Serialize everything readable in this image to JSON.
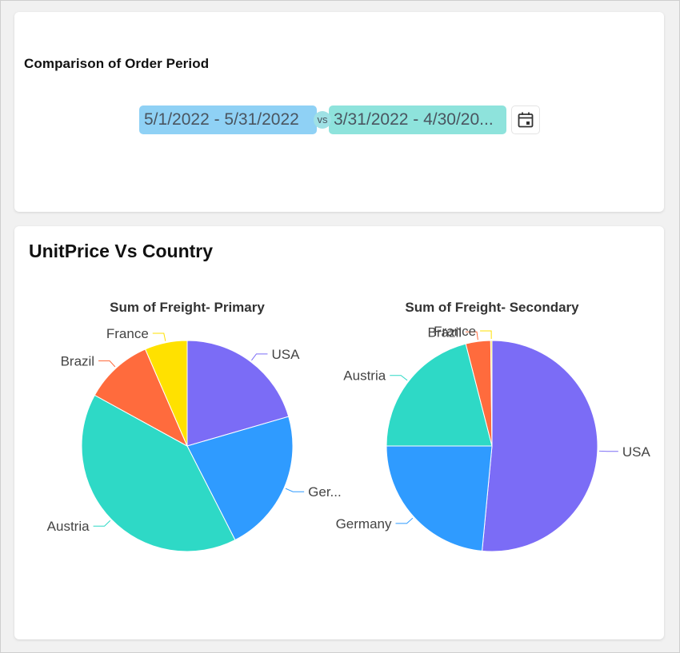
{
  "filter": {
    "title": "Comparison of Order Period",
    "primary_range": "5/1/2022 - 5/31/2022",
    "vs_label": "vs",
    "secondary_range": "3/31/2022 - 4/30/20...",
    "primary_color": "#8fd1f5",
    "secondary_color": "#8ee3dc",
    "calendar_icon": "calendar-icon"
  },
  "card": {
    "title": "UnitPrice Vs Country"
  },
  "chart_data": [
    {
      "type": "pie",
      "title": "Sum of Freight- Primary",
      "slices": [
        {
          "label": "USA",
          "value": 20.5,
          "color": "#7b6cf6"
        },
        {
          "label": "Ger...",
          "value": 22.0,
          "color": "#2f9bff"
        },
        {
          "label": "Austria",
          "value": 40.5,
          "color": "#2ed9c6"
        },
        {
          "label": "Brazil",
          "value": 10.5,
          "color": "#ff6b3d"
        },
        {
          "label": "France",
          "value": 6.5,
          "color": "#ffe100"
        }
      ]
    },
    {
      "type": "pie",
      "title": "Sum of Freight- Secondary",
      "slices": [
        {
          "label": "USA",
          "value": 51.5,
          "color": "#7b6cf6"
        },
        {
          "label": "Germany",
          "value": 23.5,
          "color": "#2f9bff"
        },
        {
          "label": "Austria",
          "value": 21.0,
          "color": "#2ed9c6"
        },
        {
          "label": "Brazil",
          "value": 3.8,
          "color": "#ff6b3d"
        },
        {
          "label": "France",
          "value": 0.2,
          "color": "#ffe100"
        }
      ]
    }
  ]
}
